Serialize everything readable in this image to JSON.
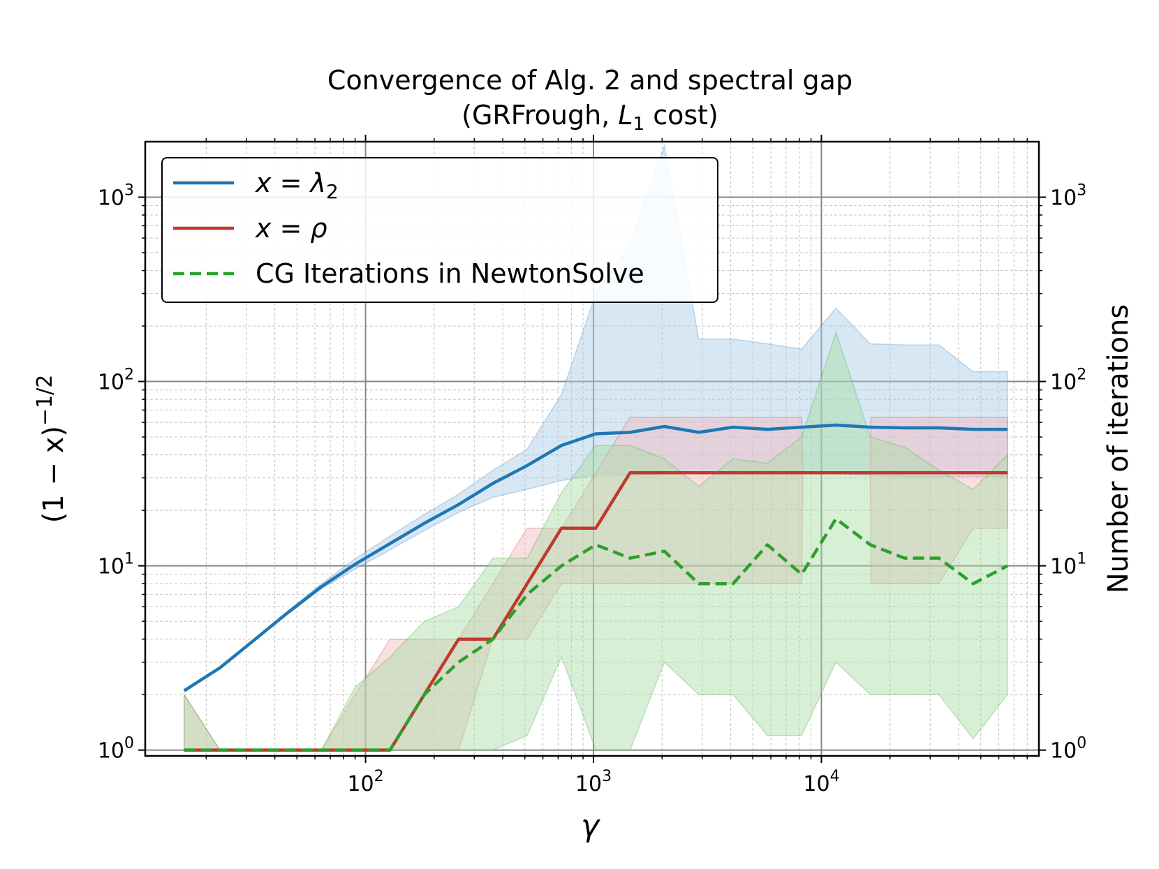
{
  "chart_data": {
    "type": "line",
    "title": "Convergence of Alg. 2 and spectral gap",
    "subtitle": {
      "prefix": "(GRFrough, ",
      "var": "L",
      "sub": "1",
      "suffix": " cost)"
    },
    "xlabel": "γ",
    "ylabel": {
      "base": "(1 − x)",
      "exp": "−1/2"
    },
    "ylabel_right": "Number of iterations",
    "xscale": "log",
    "yscale": "log",
    "xlim": [
      10.8,
      90000
    ],
    "ylim": [
      0.93,
      2000
    ],
    "xticks": [
      {
        "base": "10",
        "exp": "2",
        "value": 100
      },
      {
        "base": "10",
        "exp": "3",
        "value": 1000
      },
      {
        "base": "10",
        "exp": "4",
        "value": 10000
      }
    ],
    "yticks": [
      {
        "base": "10",
        "exp": "0",
        "value": 1
      },
      {
        "base": "10",
        "exp": "1",
        "value": 10
      },
      {
        "base": "10",
        "exp": "2",
        "value": 100
      },
      {
        "base": "10",
        "exp": "3",
        "value": 1000
      }
    ],
    "grid": true,
    "legend_position": "top-left",
    "legend": [
      {
        "label_var": "x",
        "label_eq": " = ",
        "label_sym": "λ",
        "label_sub": "2",
        "color": "#1f77b4",
        "style": "solid"
      },
      {
        "label_var": "x",
        "label_eq": " = ",
        "label_sym": "ρ",
        "label_sub": "",
        "color": "#c0392b",
        "style": "solid"
      },
      {
        "label_text": "CG Iterations in NewtonSolve",
        "color": "#2ca02c",
        "style": "dashed"
      }
    ],
    "series": [
      {
        "name": "x = λ2",
        "color": "#1f77b4",
        "fill": "#a8c9e6",
        "style": "solid",
        "x": [
          16,
          23,
          32,
          45,
          64,
          90,
          128,
          181,
          256,
          362,
          512,
          724,
          1024,
          1448,
          2048,
          2896,
          4096,
          5793,
          8192,
          11585,
          16384,
          23170,
          32768,
          46341,
          65536
        ],
        "y": [
          2.1,
          2.8,
          3.9,
          5.5,
          7.7,
          10.2,
          13.2,
          17,
          21.5,
          28,
          35,
          45,
          52,
          53,
          57,
          53,
          56.5,
          55,
          56.5,
          58,
          56.5,
          56,
          56,
          55,
          55
        ],
        "lower": [
          2.1,
          2.8,
          3.9,
          5.4,
          7.5,
          9.6,
          12.2,
          15.5,
          19.5,
          23.5,
          26,
          29,
          31,
          31,
          31.5,
          31.5,
          31.5,
          31.5,
          31.5,
          31.5,
          31,
          30.5,
          30.5,
          30.5,
          30.5
        ],
        "upper": [
          2.1,
          2.8,
          3.9,
          5.6,
          8,
          10.9,
          14.5,
          19,
          24.5,
          33,
          43,
          85,
          300,
          560,
          1900,
          170,
          170,
          160,
          150,
          250,
          160,
          158,
          158,
          113,
          113
        ]
      },
      {
        "name": "x = ρ",
        "color": "#c0392b",
        "fill": "#f2b8bf",
        "style": "solid",
        "x": [
          16,
          23,
          32,
          45,
          64,
          90,
          128,
          181,
          256,
          362,
          512,
          724,
          1024,
          1448,
          2048,
          2896,
          4096,
          5793,
          8192,
          8300,
          11585,
          16384,
          16500,
          23170,
          32768,
          46341,
          65536
        ],
        "y": [
          1,
          1,
          1,
          1,
          1,
          1,
          1,
          2,
          4,
          4,
          8,
          16,
          16,
          32,
          32,
          32,
          32,
          32,
          32,
          32,
          32,
          32,
          32,
          32,
          32,
          32,
          32
        ],
        "lower": [
          1,
          1,
          1,
          1,
          1,
          1,
          1,
          1,
          1,
          4,
          4,
          8,
          8,
          8,
          8,
          8,
          8,
          8,
          8,
          32,
          32,
          32,
          8,
          8,
          8,
          16,
          16
        ],
        "upper": [
          2,
          1,
          1,
          1,
          1,
          2,
          4,
          4,
          4,
          8,
          16,
          16,
          32,
          64,
          64,
          64,
          64,
          64,
          64,
          32,
          32,
          32,
          64,
          64,
          64,
          64,
          64
        ]
      },
      {
        "name": "CG Iterations in NewtonSolve",
        "color": "#2ca02c",
        "fill": "#a7dca1",
        "style": "dashed",
        "x": [
          16,
          23,
          32,
          45,
          64,
          90,
          128,
          181,
          256,
          362,
          512,
          724,
          1024,
          1448,
          2048,
          2896,
          4096,
          5793,
          8192,
          11585,
          16384,
          23170,
          32768,
          46341,
          65536
        ],
        "y": [
          1,
          1,
          1,
          1,
          1,
          1,
          1,
          2,
          3,
          4,
          7,
          10,
          13,
          11,
          12,
          8,
          8,
          13,
          9,
          18,
          13,
          11,
          11,
          8,
          10
        ],
        "lower": [
          1,
          1,
          1,
          1,
          1,
          1,
          1,
          1,
          1,
          1,
          1.2,
          3.2,
          1,
          1,
          3,
          2,
          2,
          1.2,
          1.2,
          3,
          2,
          2,
          2,
          1.15,
          2
        ],
        "upper": [
          2,
          1,
          1,
          1,
          1,
          2.2,
          3.2,
          5,
          6,
          11,
          11,
          25,
          45,
          45,
          38,
          27,
          38,
          36,
          50,
          185,
          50,
          44,
          33,
          26,
          40
        ]
      }
    ]
  }
}
